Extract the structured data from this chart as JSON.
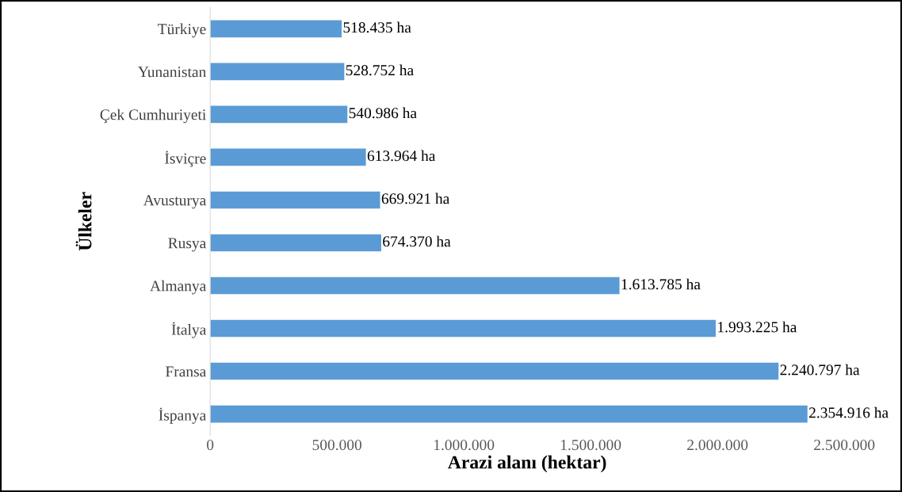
{
  "chart_data": {
    "type": "bar",
    "orientation": "horizontal",
    "xlabel": "Arazi alanı (hektar)",
    "ylabel": "Ülkeler",
    "categories": [
      "Türkiye",
      "Yunanistan",
      "Çek Cumhuriyeti",
      "İsviçre",
      "Avusturya",
      "Rusya",
      "Almanya",
      "İtalya",
      "Fransa",
      "İspanya"
    ],
    "values": [
      518435,
      528752,
      540986,
      613964,
      669921,
      674370,
      1613785,
      1993225,
      2240797,
      2354916
    ],
    "value_labels": [
      "518.435 ha",
      "528.752 ha",
      "540.986 ha",
      "613.964 ha",
      "669.921 ha",
      "674.370 ha",
      "1.613.785 ha",
      "1.993.225 ha",
      "2.240.797 ha",
      "2.354.916 ha"
    ],
    "color": "#5b9bd5",
    "xlim": [
      0,
      2500000
    ],
    "xticks": [
      0,
      {
        "value": 500000,
        "label": "500.000"
      },
      {
        "value": 1000000,
        "label": "1.000.000"
      },
      {
        "value": 1500000,
        "label": "1.500.000"
      },
      {
        "value": 2000000,
        "label": "2.000.000"
      },
      {
        "value": 2500000,
        "label": "2.500.000"
      }
    ],
    "grid": false,
    "legend": false
  }
}
